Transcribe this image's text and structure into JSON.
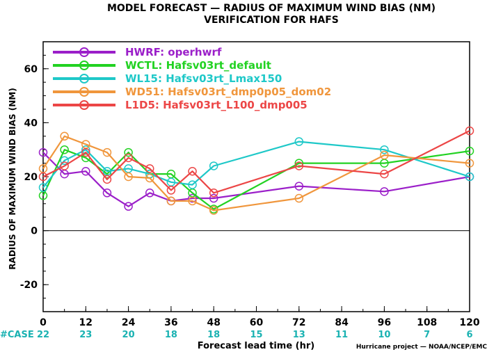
{
  "chart_data": {
    "type": "line",
    "title": "MODEL FORECAST — RADIUS OF MAXIMUM WIND BIAS (NM)",
    "subtitle": "VERIFICATION FOR HAFS",
    "xlabel": "Forecast lead time (hr)",
    "ylabel": "RADIUS OF MAXIMUM WIND BIAS (NM)",
    "xlim": [
      0,
      120
    ],
    "ylim": [
      -30,
      70
    ],
    "xticks": [
      0,
      12,
      24,
      36,
      48,
      60,
      72,
      84,
      96,
      108,
      120
    ],
    "yticks": [
      -20,
      0,
      20,
      40,
      60
    ],
    "zero_line": true,
    "legend_position": "top-left",
    "case_label": "#CASE",
    "case_counts": [
      {
        "x": 0,
        "label": "22"
      },
      {
        "x": 12,
        "label": "23"
      },
      {
        "x": 24,
        "label": "20"
      },
      {
        "x": 36,
        "label": "18"
      },
      {
        "x": 48,
        "label": "18"
      },
      {
        "x": 60,
        "label": "15"
      },
      {
        "x": 72,
        "label": "13"
      },
      {
        "x": 84,
        "label": "11"
      },
      {
        "x": 96,
        "label": "10"
      },
      {
        "x": 108,
        "label": "7"
      },
      {
        "x": 120,
        "label": "6"
      }
    ],
    "credit": "Hurricane project — NOAA/NCEP/EMC",
    "series": [
      {
        "name": "HWRF: operhwrf",
        "color": "#9b1fc9",
        "points": [
          [
            0,
            29
          ],
          [
            6,
            21
          ],
          [
            12,
            22
          ],
          [
            18,
            14
          ],
          [
            24,
            9
          ],
          [
            30,
            14
          ],
          [
            36,
            11
          ],
          [
            42,
            12
          ],
          [
            48,
            12
          ],
          [
            72,
            16.5
          ],
          [
            96,
            14.5
          ],
          [
            120,
            20
          ]
        ]
      },
      {
        "name": "WCTL: Hafsv03rt_default",
        "color": "#22d222",
        "points": [
          [
            0,
            13
          ],
          [
            6,
            30
          ],
          [
            12,
            27
          ],
          [
            18,
            21
          ],
          [
            24,
            29
          ],
          [
            30,
            21
          ],
          [
            36,
            21
          ],
          [
            42,
            14
          ],
          [
            48,
            8
          ],
          [
            72,
            25
          ],
          [
            96,
            25
          ],
          [
            120,
            29.5
          ]
        ]
      },
      {
        "name": "WL15: Hafsv03rt_Lmax150",
        "color": "#1ec8c8",
        "points": [
          [
            0,
            16
          ],
          [
            6,
            26
          ],
          [
            12,
            30
          ],
          [
            18,
            22
          ],
          [
            24,
            23
          ],
          [
            30,
            21
          ],
          [
            36,
            18
          ],
          [
            42,
            17
          ],
          [
            48,
            24
          ],
          [
            72,
            33
          ],
          [
            96,
            30
          ],
          [
            120,
            20
          ]
        ]
      },
      {
        "name": "WD51: Hafsv03rt_dmp0p05_dom02",
        "color": "#f0963c",
        "points": [
          [
            0,
            23
          ],
          [
            6,
            35
          ],
          [
            12,
            32
          ],
          [
            18,
            29
          ],
          [
            24,
            20
          ],
          [
            30,
            19.5
          ],
          [
            36,
            11
          ],
          [
            42,
            11
          ],
          [
            48,
            7.5
          ],
          [
            72,
            12
          ],
          [
            96,
            28
          ],
          [
            120,
            25
          ]
        ]
      },
      {
        "name": "L1D5: Hafsv03rt_L100_dmp005",
        "color": "#ec4646",
        "points": [
          [
            0,
            20
          ],
          [
            6,
            24
          ],
          [
            12,
            29
          ],
          [
            18,
            19
          ],
          [
            24,
            27
          ],
          [
            30,
            23
          ],
          [
            36,
            15
          ],
          [
            42,
            22
          ],
          [
            48,
            14
          ],
          [
            72,
            24
          ],
          [
            96,
            21
          ],
          [
            120,
            37
          ]
        ]
      }
    ]
  }
}
